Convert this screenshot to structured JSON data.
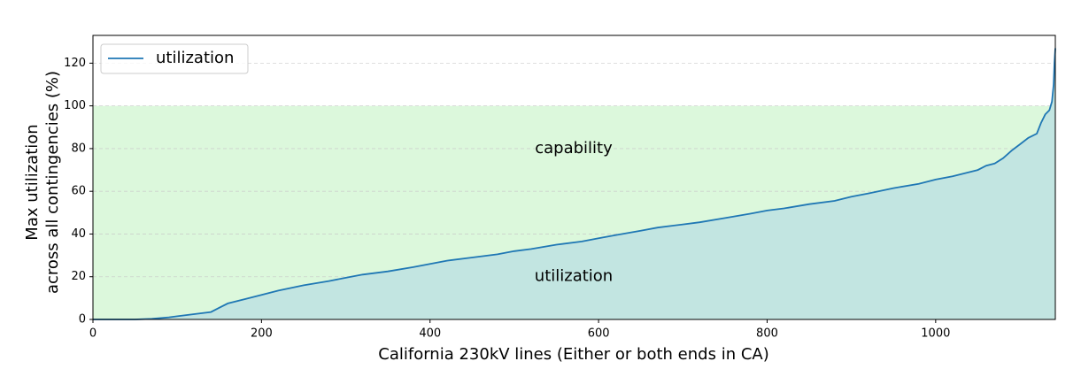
{
  "chart_data": {
    "type": "line",
    "xlabel": "California 230kV lines (Either or both ends in CA)",
    "ylabel": [
      "Max utilization",
      "across all contingencies (%)"
    ],
    "x": [
      0,
      50,
      70,
      90,
      100,
      120,
      140,
      150,
      160,
      180,
      200,
      220,
      250,
      280,
      300,
      320,
      350,
      380,
      400,
      420,
      450,
      480,
      500,
      520,
      550,
      580,
      600,
      620,
      650,
      670,
      700,
      720,
      750,
      780,
      800,
      820,
      850,
      880,
      900,
      920,
      950,
      980,
      1000,
      1020,
      1040,
      1050,
      1060,
      1070,
      1080,
      1090,
      1100,
      1110,
      1120,
      1125,
      1130,
      1135,
      1138,
      1140,
      1141,
      1142
    ],
    "series": [
      {
        "name": "utilization",
        "color": "#1f77b4",
        "fill": "#c2e5e1",
        "values": [
          0,
          0,
          0.3,
          1,
          1.5,
          2.5,
          3.5,
          5.5,
          7.5,
          9.5,
          11.5,
          13.5,
          16,
          18,
          19.5,
          21,
          22.5,
          24.5,
          26,
          27.5,
          29,
          30.5,
          32,
          33,
          35,
          36.5,
          38,
          39.5,
          41.5,
          43,
          44.5,
          45.5,
          47.5,
          49.5,
          51,
          52,
          54,
          55.5,
          57.5,
          59,
          61.5,
          63.5,
          65.5,
          67,
          69,
          70,
          72,
          73,
          75.5,
          79,
          82,
          85,
          87,
          92,
          96,
          98,
          102,
          110,
          120,
          127
        ]
      }
    ],
    "band": {
      "label": "capability",
      "range": [
        0,
        100
      ],
      "color": "#dcf8dc"
    },
    "fill_label": "utilization",
    "xlim": [
      0,
      1142
    ],
    "ylim": [
      0,
      133
    ],
    "xticks": [
      0,
      200,
      400,
      600,
      800,
      1000
    ],
    "yticks": [
      0,
      20,
      40,
      60,
      80,
      100,
      120
    ],
    "grid": true,
    "legend": "upper left"
  }
}
